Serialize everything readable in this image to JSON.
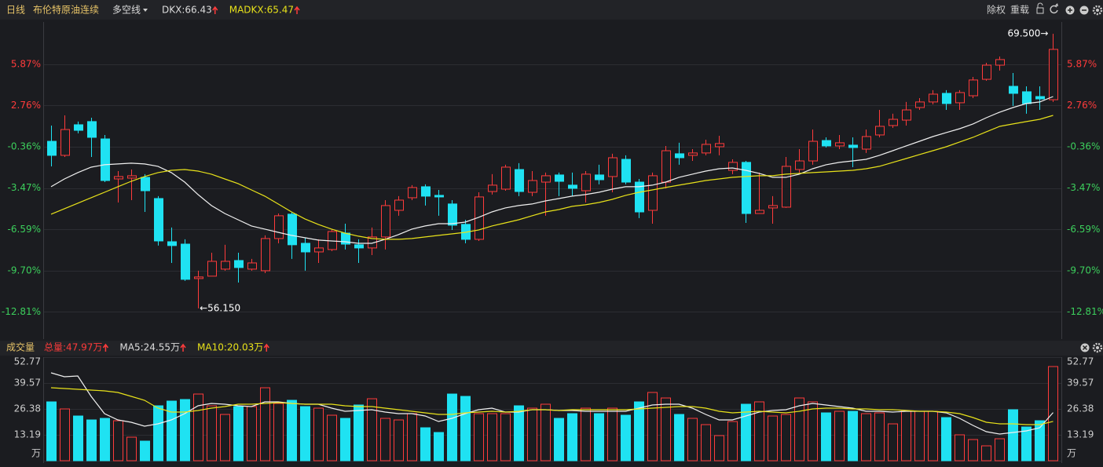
{
  "toolbar": {
    "items": [
      "日线",
      "布伦特原油连续",
      "多空线"
    ],
    "buttons": [
      "除权",
      "重载"
    ]
  },
  "chart_data": [
    {
      "type": "candlestick",
      "up_color": "#ff3b3b",
      "down_color": "#1fe2f2",
      "grid": true,
      "max_label": "69.500→",
      "min_label": "←56.150",
      "ylim": [
        -14.75,
        8.95
      ],
      "yticks": [
        {
          "value": 5.87,
          "label": "5.87%"
        },
        {
          "value": 2.76,
          "label": "2.76%"
        },
        {
          "value": -0.36,
          "label": "-0.36%"
        },
        {
          "value": -3.47,
          "label": "-3.47%"
        },
        {
          "value": -6.59,
          "label": "-6.59%"
        },
        {
          "value": -9.7,
          "label": "-9.70%"
        },
        {
          "value": -12.81,
          "label": "-12.81%"
        }
      ],
      "open": [
        0.06,
        -1.0,
        1.31,
        1.55,
        0.24,
        -2.78,
        -2.72,
        -2.66,
        -4.26,
        -7.52,
        -7.7,
        -10.3,
        -10.12,
        -9.59,
        -8.94,
        -9.59,
        -9.71,
        -7.28,
        -5.44,
        -7.64,
        -8.29,
        -8.11,
        -6.87,
        -7.75,
        -7.99,
        -7.16,
        -5.15,
        -4.2,
        -3.37,
        -4.02,
        -4.67,
        -6.21,
        -7.34,
        -3.73,
        -3.55,
        -2.07,
        -3.79,
        -3.02,
        -2.48,
        -3.25,
        -3.67,
        -2.48,
        -2.6,
        -1.3,
        -3.02,
        -5.15,
        -3.02,
        -0.88,
        -1.0,
        -0.82,
        -0.35,
        -2.13,
        -1.53,
        -5.39,
        -4.97,
        -4.91,
        -2.07,
        -1.42,
        0.12,
        -0.29,
        -0.23,
        -0.53,
        0.54,
        1.25,
        1.66,
        2.61,
        3.03,
        3.68,
        2.97,
        3.5,
        4.74,
        5.81,
        4.21,
        3.8,
        3.44,
        3.2
      ],
      "high": [
        1.25,
        2.02,
        1.55,
        1.84,
        0.54,
        -2.19,
        -2.07,
        -2.42,
        -4.08,
        -6.45,
        -7.34,
        -9.71,
        -8.35,
        -7.75,
        -8.35,
        -8.82,
        -7.04,
        -5.39,
        -5.27,
        -7.22,
        -7.34,
        -6.57,
        -6.16,
        -7.34,
        -6.45,
        -4.38,
        -4.08,
        -3.25,
        -3.19,
        -3.61,
        -4.38,
        -5.86,
        -3.79,
        -2.42,
        -1.71,
        -1.59,
        -2.19,
        -2.3,
        -2.3,
        -2.3,
        -2.19,
        -1.71,
        -0.88,
        -1.0,
        -2.78,
        -2.3,
        -0.29,
        -0.05,
        -0.53,
        0.18,
        0.48,
        -1.3,
        -1.42,
        -2.3,
        -4.08,
        -1.12,
        -0.53,
        0.95,
        0.36,
        0.54,
        0.36,
        0.95,
        2.43,
        2.14,
        3.03,
        3.32,
        3.92,
        3.92,
        3.92,
        4.92,
        5.99,
        6.46,
        5.22,
        4.21,
        4.21,
        8.18
      ],
      "low": [
        -1.83,
        -1.12,
        0.66,
        -1.12,
        -3.02,
        -4.56,
        -4.38,
        -5.27,
        -7.81,
        -9.12,
        -10.48,
        -12.55,
        -10.12,
        -9.71,
        -10.6,
        -9.71,
        -9.89,
        -7.64,
        -8.82,
        -9.71,
        -9.12,
        -8.23,
        -8.11,
        -9.12,
        -8.53,
        -8.11,
        -5.56,
        -4.38,
        -4.79,
        -5.56,
        -6.63,
        -7.64,
        -7.46,
        -3.96,
        -3.67,
        -4.08,
        -4.08,
        -5.56,
        -4.08,
        -4.08,
        -4.56,
        -3.19,
        -3.79,
        -3.19,
        -5.74,
        -6.16,
        -3.49,
        -1.71,
        -1.42,
        -1.0,
        -1.0,
        -2.42,
        -6.1,
        -5.39,
        -6.16,
        -4.97,
        -2.3,
        -1.71,
        -0.41,
        -0.53,
        -1.89,
        -0.82,
        0.36,
        1.07,
        1.25,
        2.43,
        2.85,
        2.43,
        2.43,
        3.32,
        4.63,
        5.4,
        2.73,
        2.14,
        2.43,
        3.03
      ],
      "close": [
        -1.0,
        0.95,
        0.89,
        0.36,
        -2.9,
        -2.6,
        -2.54,
        -3.67,
        -7.46,
        -7.81,
        -10.36,
        -10.18,
        -9.0,
        -9.0,
        -9.47,
        -9.12,
        -7.28,
        -5.56,
        -7.75,
        -8.29,
        -7.99,
        -6.75,
        -7.7,
        -7.99,
        -7.16,
        -4.79,
        -4.38,
        -3.43,
        -4.08,
        -4.14,
        -6.27,
        -7.34,
        -4.14,
        -3.25,
        -1.89,
        -3.73,
        -2.9,
        -2.54,
        -2.96,
        -3.49,
        -2.42,
        -2.84,
        -1.18,
        -3.02,
        -5.27,
        -2.54,
        -0.65,
        -1.18,
        -0.82,
        -0.17,
        -0.11,
        -1.53,
        -5.39,
        -5.15,
        -4.79,
        -1.83,
        -1.42,
        0.06,
        -0.29,
        -0.05,
        -0.41,
        0.42,
        1.19,
        1.72,
        2.43,
        3.03,
        3.62,
        2.91,
        3.74,
        4.69,
        5.81,
        6.23,
        3.68,
        2.91,
        3.26,
        7.0
      ],
      "lines": [
        {
          "name": "DKX:66.43",
          "color": "#f0f0f0",
          "values": [
            -3.37,
            -2.78,
            -2.3,
            -1.89,
            -1.71,
            -1.65,
            -1.59,
            -1.65,
            -1.83,
            -2.3,
            -3.02,
            -3.96,
            -4.79,
            -5.39,
            -5.86,
            -6.33,
            -6.57,
            -6.81,
            -7.04,
            -7.22,
            -7.4,
            -7.46,
            -7.52,
            -7.64,
            -7.64,
            -7.34,
            -6.98,
            -6.57,
            -6.33,
            -6.16,
            -6.16,
            -6.04,
            -5.68,
            -5.27,
            -4.97,
            -4.79,
            -4.67,
            -4.44,
            -4.26,
            -4.08,
            -3.96,
            -3.79,
            -3.55,
            -3.37,
            -3.37,
            -3.25,
            -3.02,
            -2.66,
            -2.42,
            -2.19,
            -2.01,
            -1.95,
            -2.13,
            -2.36,
            -2.66,
            -2.66,
            -2.42,
            -2.01,
            -1.71,
            -1.53,
            -1.42,
            -1.3,
            -1.0,
            -0.65,
            -0.29,
            0.06,
            0.42,
            0.72,
            1.01,
            1.37,
            1.84,
            2.26,
            2.61,
            2.91,
            3.03,
            3.44
          ]
        },
        {
          "name": "MADKX:65.47",
          "color": "#e8e21a",
          "values": [
            -5.44,
            -5.03,
            -4.61,
            -4.2,
            -3.79,
            -3.37,
            -2.96,
            -2.6,
            -2.3,
            -2.13,
            -2.07,
            -2.19,
            -2.42,
            -2.78,
            -3.13,
            -3.61,
            -4.08,
            -4.67,
            -5.27,
            -5.8,
            -6.21,
            -6.57,
            -6.87,
            -7.1,
            -7.28,
            -7.34,
            -7.34,
            -7.28,
            -7.16,
            -7.04,
            -6.93,
            -6.81,
            -6.63,
            -6.33,
            -6.1,
            -5.86,
            -5.56,
            -5.27,
            -5.09,
            -4.85,
            -4.73,
            -4.56,
            -4.32,
            -4.02,
            -3.79,
            -3.61,
            -3.43,
            -3.25,
            -3.08,
            -2.9,
            -2.78,
            -2.66,
            -2.6,
            -2.54,
            -2.54,
            -2.42,
            -2.36,
            -2.3,
            -2.25,
            -2.19,
            -2.13,
            -2.01,
            -1.83,
            -1.53,
            -1.24,
            -0.94,
            -0.65,
            -0.35,
            0.01,
            0.36,
            0.78,
            1.19,
            1.37,
            1.55,
            1.72,
            2.02
          ]
        }
      ]
    },
    {
      "type": "bar",
      "title": "成交量",
      "total_label": "总量:47.97万",
      "grid": true,
      "ylim": [
        0,
        52.77
      ],
      "yticks": [
        {
          "value": 0,
          "label": "万"
        },
        13.19,
        26.38,
        39.57,
        52.77
      ],
      "values": [
        29.98,
        26.38,
        22.78,
        20.78,
        21.58,
        20.38,
        11.99,
        9.99,
        27.98,
        30.38,
        31.18,
        33.97,
        27.98,
        23.58,
        27.58,
        27.58,
        37.17,
        29.18,
        30.78,
        27.58,
        26.78,
        23.18,
        21.58,
        28.38,
        31.57,
        21.58,
        20.78,
        23.98,
        16.79,
        14.39,
        33.97,
        32.77,
        23.98,
        23.98,
        23.98,
        27.98,
        26.78,
        28.78,
        21.58,
        23.98,
        26.78,
        23.98,
        26.78,
        23.18,
        29.98,
        34.77,
        31.97,
        23.58,
        21.58,
        18.39,
        12.79,
        19.98,
        28.78,
        29.98,
        22.78,
        23.58,
        31.97,
        29.98,
        24.38,
        25.18,
        25.18,
        23.98,
        24.38,
        18.78,
        25.18,
        25.18,
        25.18,
        21.98,
        13.19,
        10.79,
        7.59,
        11.19,
        25.98,
        17.19,
        20.38,
        47.97
      ],
      "lines": [
        {
          "name": "MA5:24.55万",
          "color": "#f0f0f0",
          "values": [
            44.76,
            42.77,
            43.17,
            32.77,
            23.98,
            20.78,
            19.58,
            17.59,
            18.78,
            20.78,
            23.98,
            27.98,
            29.18,
            28.78,
            27.98,
            27.58,
            29.98,
            29.98,
            29.18,
            28.78,
            28.78,
            26.78,
            25.18,
            25.58,
            25.98,
            24.78,
            23.98,
            23.98,
            22.78,
            19.98,
            21.58,
            23.98,
            25.98,
            26.78,
            24.78,
            24.78,
            25.98,
            25.98,
            25.58,
            25.58,
            25.18,
            25.18,
            25.18,
            25.18,
            26.78,
            28.38,
            28.78,
            28.78,
            26.78,
            23.58,
            20.78,
            20.78,
            22.78,
            24.78,
            25.58,
            25.98,
            27.98,
            29.18,
            28.38,
            27.58,
            26.78,
            25.18,
            25.18,
            24.78,
            25.18,
            25.18,
            25.18,
            24.38,
            21.58,
            17.99,
            14.79,
            13.59,
            14.39,
            15.19,
            16.79,
            24.55
          ]
        },
        {
          "name": "MA10:20.03万",
          "color": "#e8e21a",
          "values": [
            37.17,
            36.77,
            36.37,
            35.97,
            35.57,
            34.77,
            32.77,
            30.78,
            26.78,
            24.78,
            24.78,
            25.58,
            26.78,
            27.58,
            28.78,
            28.78,
            29.18,
            29.58,
            29.18,
            28.78,
            28.78,
            28.78,
            27.98,
            27.58,
            27.58,
            26.78,
            25.98,
            25.18,
            24.38,
            23.58,
            23.58,
            24.38,
            24.78,
            25.18,
            24.78,
            25.18,
            25.98,
            25.98,
            25.58,
            25.98,
            25.98,
            25.98,
            25.98,
            25.98,
            26.38,
            26.78,
            27.18,
            27.58,
            27.58,
            26.78,
            25.18,
            24.38,
            24.78,
            25.18,
            24.78,
            24.38,
            25.18,
            26.38,
            26.78,
            26.78,
            26.38,
            26.38,
            25.98,
            25.98,
            25.58,
            25.18,
            25.18,
            24.78,
            23.98,
            21.98,
            19.58,
            18.78,
            18.78,
            18.39,
            18.39,
            20.03
          ]
        }
      ]
    }
  ]
}
